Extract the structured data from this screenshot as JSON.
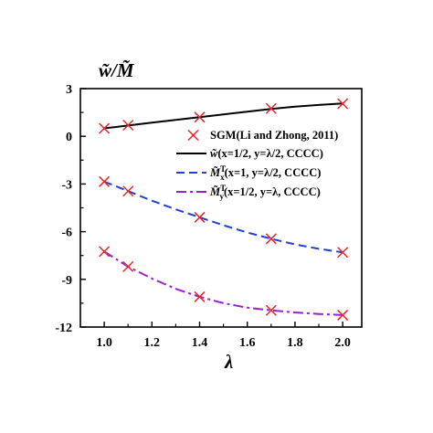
{
  "chart_data": {
    "type": "line",
    "ylabel": "w̃/M̃",
    "xlabel": "λ",
    "xlim": [
      0.9,
      2.08
    ],
    "ylim": [
      -12,
      3
    ],
    "xticks": [
      "1.0",
      "1.2",
      "1.4",
      "1.6",
      "1.8",
      "2.0"
    ],
    "yticks": [
      "3",
      "0",
      "-3",
      "-6",
      "-9",
      "-12"
    ],
    "legend_position": "right",
    "marker_series": {
      "name": "SGM(Li and Zhong, 2011)",
      "color": "#e8252a",
      "marker": "x",
      "groups": [
        {
          "x": [
            1.0,
            1.1,
            1.4,
            1.7,
            2.0
          ],
          "y": [
            0.5,
            0.7,
            1.2,
            1.75,
            2.05
          ]
        },
        {
          "x": [
            1.0,
            1.1,
            1.4,
            1.7,
            2.0
          ],
          "y": [
            -2.85,
            -3.45,
            -5.1,
            -6.45,
            -7.3
          ]
        },
        {
          "x": [
            1.0,
            1.1,
            1.4,
            1.7,
            2.0
          ],
          "y": [
            -7.25,
            -8.2,
            -10.1,
            -10.95,
            -11.25
          ]
        }
      ]
    },
    "series": [
      {
        "name": "w̃(x=1/2, y=λ/2, CCCC)",
        "color": "#000000",
        "dash": "solid",
        "x": [
          1.0,
          1.1,
          1.2,
          1.3,
          1.4,
          1.5,
          1.6,
          1.7,
          1.8,
          1.9,
          2.0
        ],
        "y": [
          0.5,
          0.68,
          0.86,
          1.03,
          1.2,
          1.38,
          1.55,
          1.72,
          1.86,
          1.97,
          2.07
        ]
      },
      {
        "name": "M̃xT(x=1, y=λ/2, CCCC)",
        "color": "#1f3fd8",
        "dash": "dashed",
        "x": [
          1.0,
          1.1,
          1.2,
          1.3,
          1.4,
          1.5,
          1.6,
          1.7,
          1.8,
          1.9,
          2.0
        ],
        "y": [
          -2.85,
          -3.45,
          -4.05,
          -4.6,
          -5.1,
          -5.6,
          -6.05,
          -6.45,
          -6.8,
          -7.08,
          -7.3
        ]
      },
      {
        "name": "M̃yT(x=1/2, y=λ, CCCC)",
        "color": "#9b1fd1",
        "dash": "dashdot",
        "x": [
          1.0,
          1.1,
          1.2,
          1.3,
          1.4,
          1.5,
          1.6,
          1.7,
          1.8,
          1.9,
          2.0
        ],
        "y": [
          -7.25,
          -8.2,
          -8.95,
          -9.6,
          -10.1,
          -10.5,
          -10.78,
          -10.95,
          -11.08,
          -11.18,
          -11.25
        ]
      }
    ],
    "legend": [
      {
        "kind": "marker",
        "text": "SGM(Li and Zhong, 2011)"
      },
      {
        "kind": "line",
        "series": 0,
        "sym": "w̃",
        "sub": "",
        "sup": "",
        "rest": "(x=1/2, y=λ/2, CCCC)"
      },
      {
        "kind": "line",
        "series": 1,
        "sym": "M̃",
        "sub": "x",
        "sup": "T",
        "rest": "(x=1, y=λ/2, CCCC)"
      },
      {
        "kind": "line",
        "series": 2,
        "sym": "M̃",
        "sub": "y",
        "sup": "T",
        "rest": "(x=1/2, y=λ, CCCC)"
      }
    ]
  }
}
